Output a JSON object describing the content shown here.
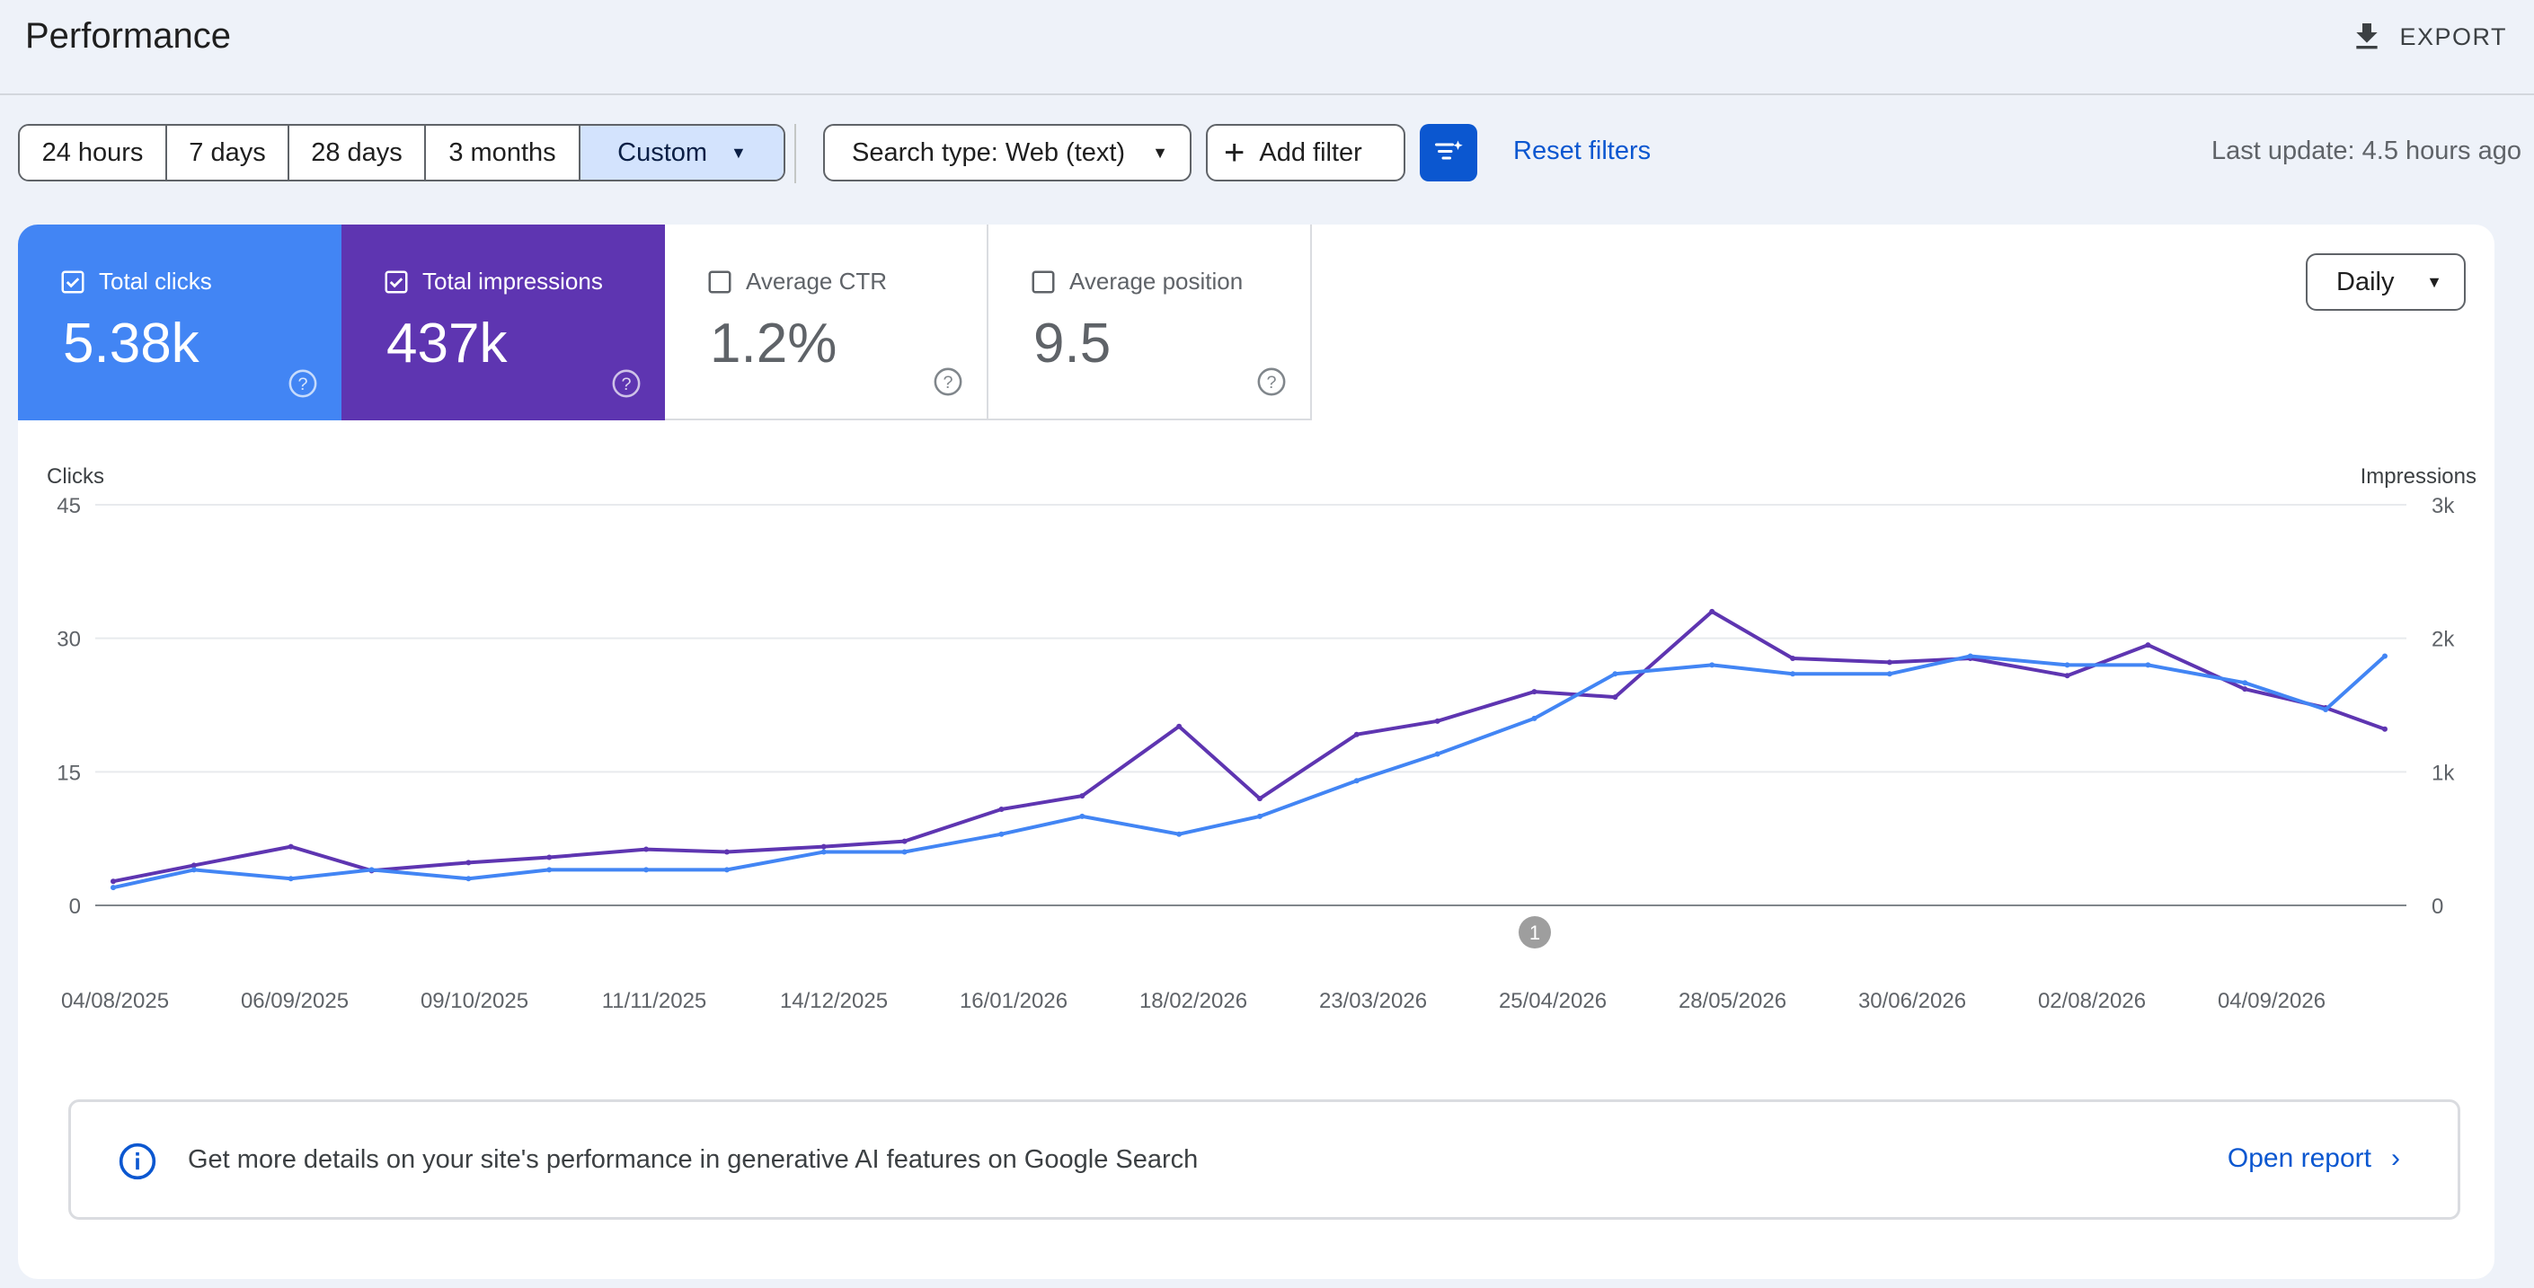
{
  "header": {
    "title": "Performance",
    "export_label": "EXPORT"
  },
  "filters": {
    "ranges": [
      "24 hours",
      "7 days",
      "28 days",
      "3 months",
      "Custom"
    ],
    "active_range": "Custom",
    "search_type": "Search type: Web (text)",
    "add_filter": "Add filter",
    "reset": "Reset filters",
    "last_update": "Last update: 4.5 hours ago"
  },
  "metrics": [
    {
      "label": "Total clicks",
      "value": "5.38k",
      "checked": true,
      "color": "#4285f4"
    },
    {
      "label": "Total impressions",
      "value": "437k",
      "checked": true,
      "color": "#5e35b1"
    },
    {
      "label": "Average CTR",
      "value": "1.2%",
      "checked": false
    },
    {
      "label": "Average position",
      "value": "9.5",
      "checked": false
    }
  ],
  "granularity": "Daily",
  "chart_data": {
    "type": "line",
    "y_left_label": "Clicks",
    "y_right_label": "Impressions",
    "y_left_ticks": [
      "0",
      "15",
      "30",
      "45"
    ],
    "y_right_ticks": [
      "0",
      "1k",
      "2k",
      "3k"
    ],
    "ylim_left": [
      0,
      45
    ],
    "ylim_right": [
      0,
      3000
    ],
    "x_tick_labels": [
      "04/08/2025",
      "06/09/2025",
      "09/10/2025",
      "11/11/2025",
      "14/12/2025",
      "16/01/2026",
      "18/02/2026",
      "23/03/2026",
      "25/04/2026",
      "28/05/2026",
      "30/06/2026",
      "02/08/2026",
      "04/09/2026"
    ],
    "annotation": "1",
    "series": [
      {
        "name": "Total clicks",
        "color": "#4285f4",
        "axis": "left",
        "x": [
          "2025-08-04",
          "2025-08-19",
          "2025-09-06",
          "2025-09-21",
          "2025-10-09",
          "2025-10-24",
          "2025-11-11",
          "2025-11-26",
          "2025-12-14",
          "2025-12-29",
          "2026-01-16",
          "2026-01-31",
          "2026-02-18",
          "2026-03-05",
          "2026-03-23",
          "2026-04-07",
          "2026-04-25",
          "2026-05-10",
          "2026-05-28",
          "2026-06-12",
          "2026-06-30",
          "2026-07-15",
          "2026-08-02",
          "2026-08-17",
          "2026-09-04",
          "2026-09-19",
          "2026-09-30"
        ],
        "values": [
          2,
          4,
          3,
          4,
          3,
          4,
          4,
          4,
          6,
          6,
          8,
          10,
          8,
          10,
          14,
          17,
          21,
          26,
          27,
          26,
          26,
          28,
          27,
          27,
          25,
          22,
          28
        ]
      },
      {
        "name": "Total impressions",
        "color": "#5e35b1",
        "axis": "right",
        "x": [
          "2025-08-04",
          "2025-08-19",
          "2025-09-06",
          "2025-09-21",
          "2025-10-09",
          "2025-10-24",
          "2025-11-11",
          "2025-11-26",
          "2025-12-14",
          "2025-12-29",
          "2026-01-16",
          "2026-01-31",
          "2026-02-18",
          "2026-03-05",
          "2026-03-23",
          "2026-04-07",
          "2026-04-25",
          "2026-05-10",
          "2026-05-28",
          "2026-06-12",
          "2026-06-30",
          "2026-07-15",
          "2026-08-02",
          "2026-08-17",
          "2026-09-04",
          "2026-09-19",
          "2026-09-30"
        ],
        "values": [
          180,
          300,
          440,
          260,
          320,
          360,
          420,
          400,
          440,
          480,
          720,
          820,
          1340,
          800,
          1280,
          1380,
          1600,
          1560,
          2200,
          1850,
          1820,
          1850,
          1720,
          1950,
          1620,
          1480,
          1320
        ]
      }
    ]
  },
  "banner": {
    "message": "Get more details on your site's performance in generative AI features on Google Search",
    "link": "Open report"
  }
}
